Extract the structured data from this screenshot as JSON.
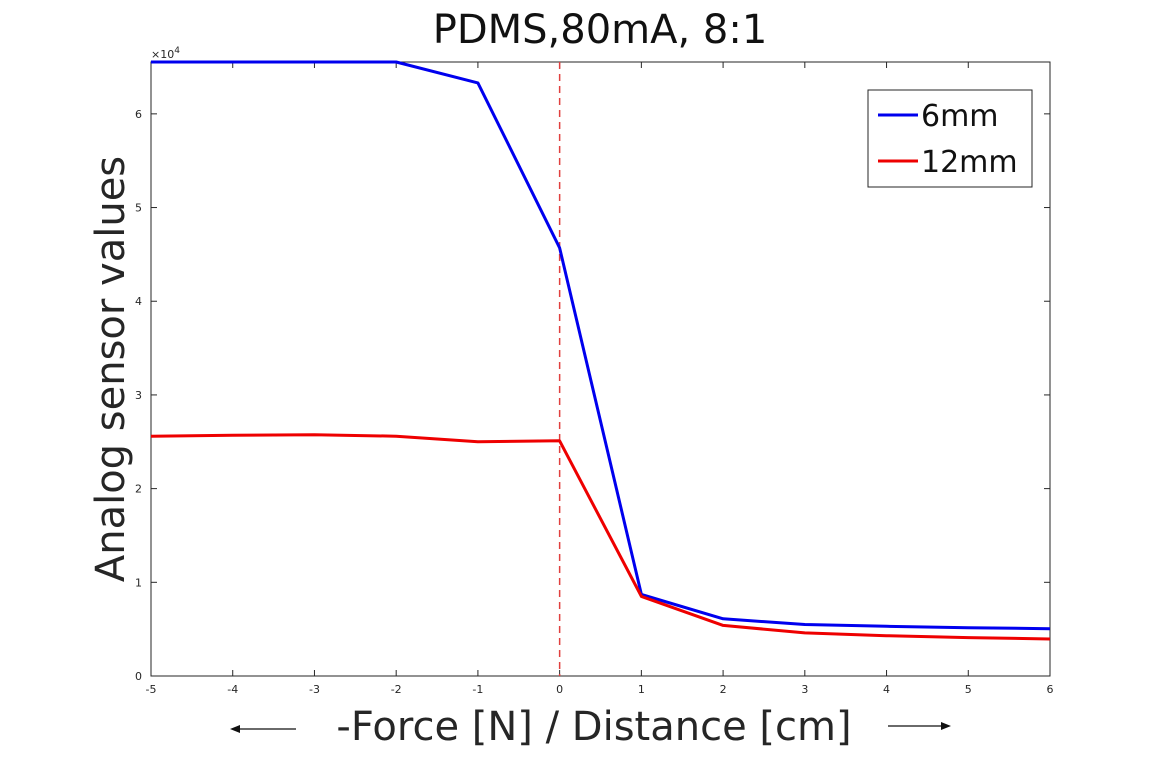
{
  "chart_data": {
    "type": "line",
    "title": "PDMS,80mA, 8:1",
    "xlabel": "-Force [N] / Distance [cm]",
    "ylabel": "Analog sensor values",
    "y_multiplier": "×10",
    "y_multiplier_exponent": "4",
    "xlim": [
      -5,
      6
    ],
    "ylim": [
      0,
      65535
    ],
    "x_ticks": [
      -5,
      -4,
      -3,
      -2,
      -1,
      0,
      1,
      2,
      3,
      4,
      5,
      6
    ],
    "x_tick_labels": [
      "-5",
      "-4",
      "-3",
      "-2",
      "-1",
      "0",
      "1",
      "2",
      "3",
      "4",
      "5",
      "6"
    ],
    "y_ticks": [
      0,
      10000,
      20000,
      30000,
      40000,
      50000,
      60000
    ],
    "y_tick_labels": [
      "0",
      "1",
      "2",
      "3",
      "4",
      "5",
      "6"
    ],
    "grid": false,
    "legend_position": "top-right",
    "reference_line": {
      "x": 0,
      "style": "dashed",
      "color": "#e0403f"
    },
    "series": [
      {
        "name": "6mm",
        "color": "#0000ee",
        "x": [
          -5,
          -4,
          -3,
          -2,
          -1,
          0,
          1,
          2,
          3,
          4,
          5,
          6
        ],
        "y": [
          65535,
          65535,
          65535,
          65535,
          63300,
          45700,
          8700,
          6100,
          5500,
          5300,
          5150,
          5050
        ]
      },
      {
        "name": "12mm",
        "color": "#ee0000",
        "x": [
          -5,
          -4,
          -3,
          -2,
          -1,
          0,
          1,
          2,
          3,
          4,
          5,
          6
        ],
        "y": [
          25600,
          25700,
          25750,
          25600,
          25000,
          25100,
          8500,
          5400,
          4600,
          4300,
          4100,
          3950
        ]
      }
    ],
    "arrows": {
      "left": "←",
      "right": "→"
    }
  }
}
